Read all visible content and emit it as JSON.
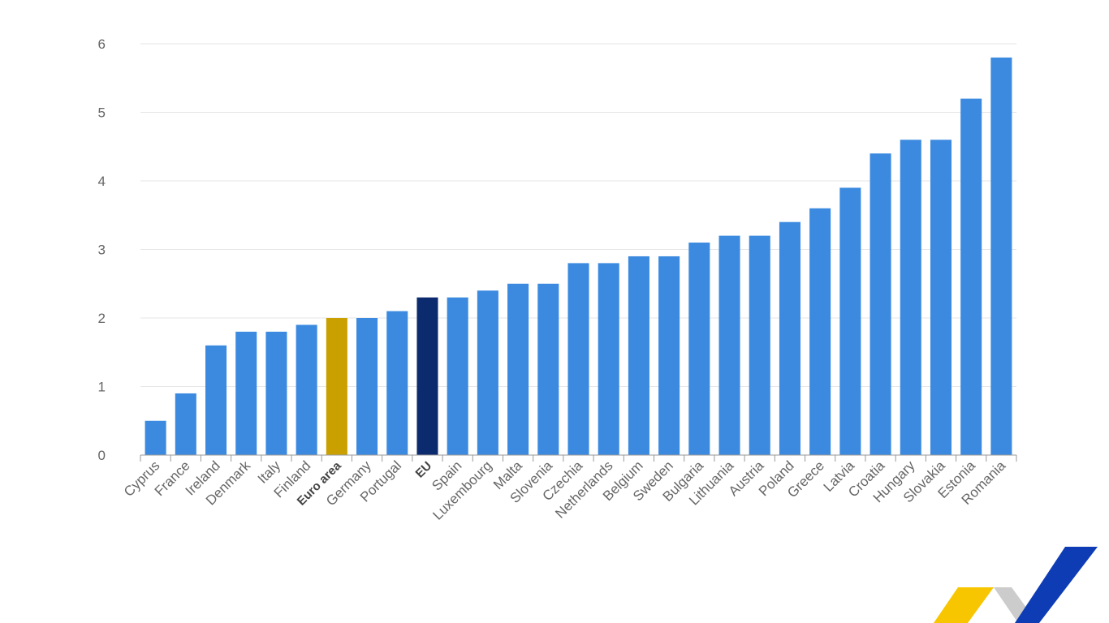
{
  "chart_data": {
    "type": "bar",
    "title": "",
    "xlabel": "",
    "ylabel": "",
    "ylim": [
      0,
      6
    ],
    "yticks": [
      0,
      1,
      2,
      3,
      4,
      5,
      6
    ],
    "grid": true,
    "categories": [
      "Cyprus",
      "France",
      "Ireland",
      "Denmark",
      "Italy",
      "Finland",
      "Euro area",
      "Germany",
      "Portugal",
      "EU",
      "Spain",
      "Luxembourg",
      "Malta",
      "Slovenia",
      "Czechia",
      "Netherlands",
      "Belgium",
      "Sweden",
      "Bulgaria",
      "Lithuania",
      "Austria",
      "Poland",
      "Greece",
      "Latvia",
      "Croatia",
      "Hungary",
      "Slovakia",
      "Estonia",
      "Romania"
    ],
    "values": [
      0.5,
      0.9,
      1.6,
      1.8,
      1.8,
      1.9,
      2.0,
      2.0,
      2.1,
      2.3,
      2.3,
      2.4,
      2.5,
      2.5,
      2.8,
      2.8,
      2.9,
      2.9,
      3.1,
      3.2,
      3.2,
      3.4,
      3.6,
      3.9,
      4.4,
      4.6,
      4.6,
      5.2,
      5.8
    ],
    "highlight": {
      "Euro area": "#c9a000",
      "EU": "#0c2b6e"
    },
    "bold_categories": [
      "Euro area",
      "EU"
    ],
    "default_color": "#3b8ae0"
  },
  "logo": {
    "icon": "eu-chevron-logo-icon",
    "colors": {
      "yellow": "#f7c600",
      "grey": "#cccccc",
      "blue": "#0d3cb4"
    }
  }
}
